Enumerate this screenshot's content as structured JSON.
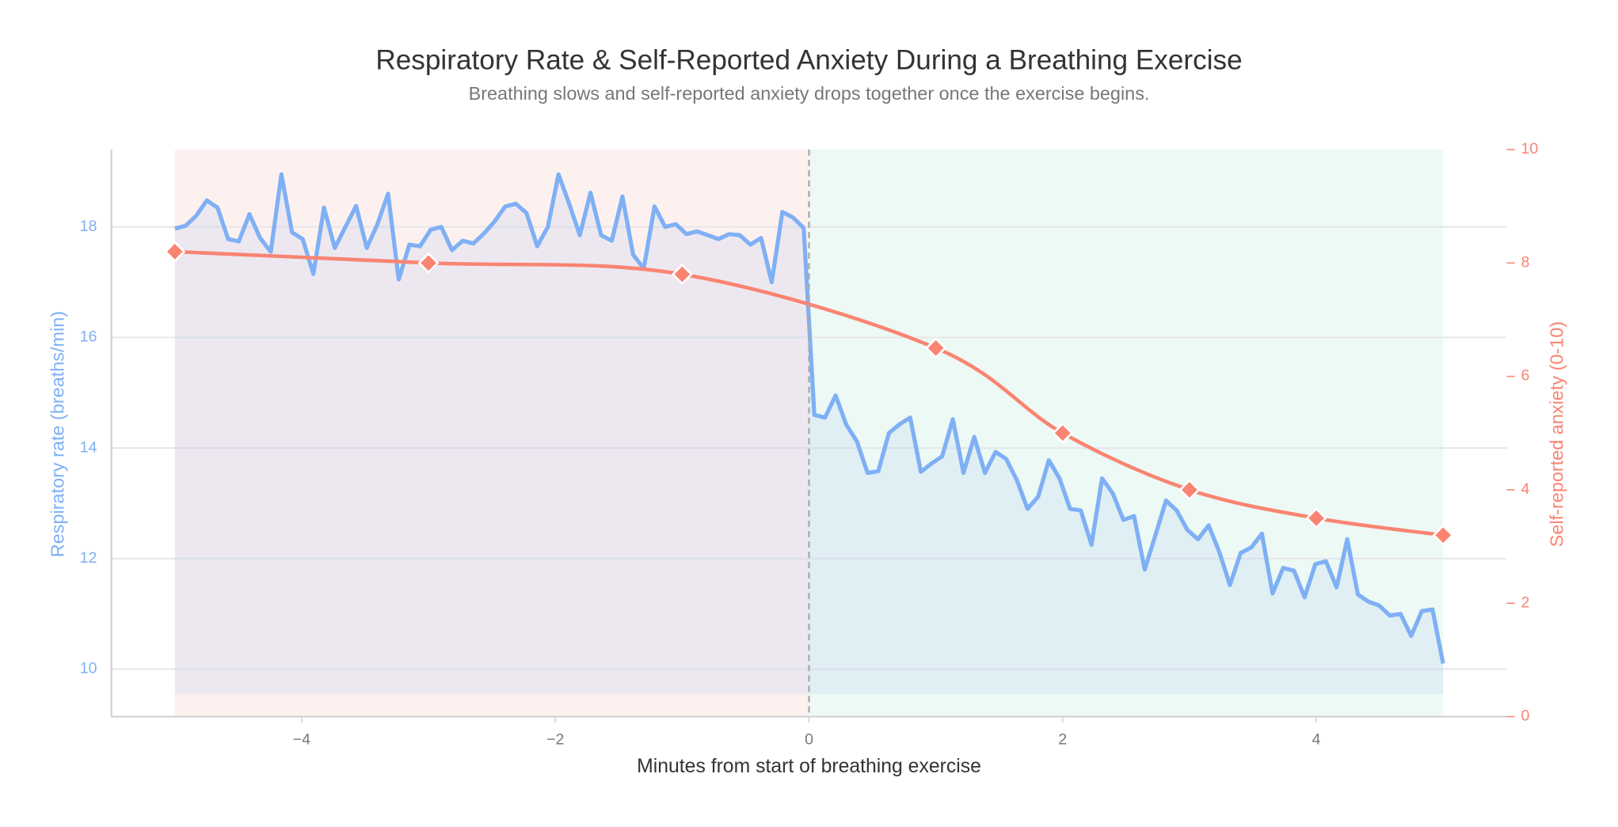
{
  "chart_data": {
    "type": "line",
    "title": "Respiratory Rate & Self-Reported Anxiety During a Breathing Exercise",
    "subtitle": "Breathing slows and self-reported anxiety drops together once the exercise begins.",
    "x_label": "Minutes from start of breathing exercise",
    "y_label": "Respiratory rate (breaths/min)",
    "y2_label": "Self-reported anxiety (0-10)",
    "xlim": [
      -5.5,
      5.5
    ],
    "xticks": [
      {
        "value": -4,
        "label": "−4"
      },
      {
        "value": -2,
        "label": "−2"
      },
      0,
      2,
      4
    ],
    "ylim": [
      9.14,
      19.4
    ],
    "yticks": [
      10,
      12,
      14,
      16,
      18
    ],
    "y2lim": [
      0,
      10
    ],
    "y2ticks": [
      0,
      2,
      4,
      6,
      8,
      10
    ],
    "grid": true,
    "vline": 0,
    "spans": [
      {
        "x0": -5,
        "x1": 0,
        "color": "#fdf1ef"
      },
      {
        "x0": 0,
        "x1": 5,
        "color": "#edf9f4"
      }
    ],
    "series": [
      {
        "name": "Respiratory rate",
        "color": "#7fb0f5",
        "area_base": 9.55,
        "x": [
          -5,
          -4.916,
          -4.832,
          -4.748,
          -4.664,
          -4.58,
          -4.496,
          -4.412,
          -4.328,
          -4.244,
          -4.16,
          -4.076,
          -3.992,
          -3.908,
          -3.824,
          -3.739,
          -3.655,
          -3.571,
          -3.487,
          -3.403,
          -3.319,
          -3.235,
          -3.151,
          -3.067,
          -2.983,
          -2.899,
          -2.815,
          -2.731,
          -2.647,
          -2.563,
          -2.479,
          -2.395,
          -2.311,
          -2.227,
          -2.143,
          -2.059,
          -1.975,
          -1.891,
          -1.807,
          -1.723,
          -1.639,
          -1.555,
          -1.471,
          -1.387,
          -1.303,
          -1.218,
          -1.134,
          -1.05,
          -0.966,
          -0.882,
          -0.798,
          -0.714,
          -0.63,
          -0.546,
          -0.462,
          -0.378,
          -0.294,
          -0.21,
          -0.126,
          -0.042,
          0.042,
          0.126,
          0.21,
          0.294,
          0.378,
          0.462,
          0.546,
          0.63,
          0.714,
          0.798,
          0.882,
          0.966,
          1.05,
          1.134,
          1.218,
          1.303,
          1.387,
          1.471,
          1.555,
          1.639,
          1.723,
          1.807,
          1.891,
          1.975,
          2.059,
          2.143,
          2.227,
          2.311,
          2.395,
          2.479,
          2.563,
          2.647,
          2.731,
          2.815,
          2.899,
          2.983,
          3.067,
          3.151,
          3.235,
          3.319,
          3.403,
          3.487,
          3.571,
          3.655,
          3.739,
          3.824,
          3.908,
          3.992,
          4.076,
          4.16,
          4.244,
          4.328,
          4.412,
          4.496,
          4.58,
          4.664,
          4.748,
          4.832,
          4.916,
          5
        ],
        "values": [
          17.97,
          18.02,
          18.2,
          18.48,
          18.35,
          17.78,
          17.74,
          18.23,
          17.8,
          17.55,
          18.95,
          17.9,
          17.78,
          17.15,
          18.35,
          17.62,
          18.0,
          18.38,
          17.62,
          18.05,
          18.6,
          17.05,
          17.68,
          17.65,
          17.95,
          18.0,
          17.58,
          17.75,
          17.7,
          17.88,
          18.1,
          18.37,
          18.42,
          18.25,
          17.65,
          18.0,
          18.95,
          18.42,
          17.85,
          18.62,
          17.85,
          17.75,
          18.55,
          17.5,
          17.25,
          18.37,
          18.0,
          18.05,
          17.87,
          17.92,
          17.85,
          17.78,
          17.87,
          17.85,
          17.68,
          17.8,
          17.0,
          18.27,
          18.17,
          17.98,
          14.6,
          14.55,
          14.95,
          14.42,
          14.12,
          13.55,
          13.58,
          14.27,
          14.43,
          14.55,
          13.57,
          13.72,
          13.85,
          14.52,
          13.55,
          14.2,
          13.55,
          13.93,
          13.8,
          13.42,
          12.9,
          13.12,
          13.78,
          13.45,
          12.9,
          12.87,
          12.25,
          13.45,
          13.18,
          12.7,
          12.77,
          11.8,
          12.42,
          13.05,
          12.87,
          12.52,
          12.35,
          12.6,
          12.12,
          11.52,
          12.1,
          12.2,
          12.45,
          11.37,
          11.83,
          11.78,
          11.3,
          11.9,
          11.95,
          11.48,
          12.35,
          11.35,
          11.22,
          11.15,
          10.97,
          11.0,
          10.6,
          11.05,
          11.08,
          10.1
        ]
      },
      {
        "name": "Self-reported anxiety",
        "color": "#f98472",
        "axis": "y2",
        "marker": "diamond",
        "x": [
          -5,
          -3,
          -1,
          1,
          2,
          3,
          4,
          5
        ],
        "values": [
          8.2,
          8.0,
          7.8,
          6.5,
          5.0,
          4.0,
          3.5,
          3.2
        ]
      }
    ]
  }
}
